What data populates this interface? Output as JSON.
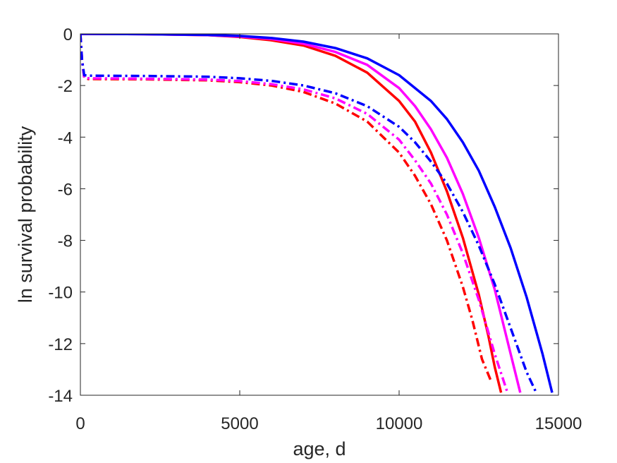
{
  "chart_data": {
    "type": "line",
    "xlabel": "age, d",
    "ylabel": "ln survival probability",
    "xlim": [
      0,
      15000
    ],
    "ylim": [
      -14,
      0
    ],
    "xticks": [
      0,
      5000,
      10000,
      15000
    ],
    "yticks": [
      0,
      -2,
      -4,
      -6,
      -8,
      -10,
      -12,
      -14
    ],
    "grid": false,
    "series": [
      {
        "color": "#ff0000",
        "style": "solid",
        "x": [
          0,
          2000,
          4000,
          5000,
          6000,
          7000,
          8000,
          9000,
          10000,
          10500,
          11000,
          11500,
          12000,
          12500,
          12800,
          13000,
          13200
        ],
        "y": [
          0,
          -0.01,
          -0.05,
          -0.12,
          -0.25,
          -0.45,
          -0.85,
          -1.5,
          -2.6,
          -3.4,
          -4.6,
          -6.1,
          -7.9,
          -10.1,
          -11.7,
          -12.9,
          -13.9
        ]
      },
      {
        "color": "#ff00ff",
        "style": "solid",
        "x": [
          0,
          2000,
          4000,
          5000,
          6000,
          7000,
          8000,
          9000,
          10000,
          10500,
          11000,
          11500,
          12000,
          12500,
          13000,
          13500,
          13800
        ],
        "y": [
          0,
          -0.01,
          -0.05,
          -0.1,
          -0.2,
          -0.38,
          -0.7,
          -1.2,
          -2.1,
          -2.8,
          -3.7,
          -4.8,
          -6.2,
          -7.9,
          -9.9,
          -12.4,
          -13.9
        ]
      },
      {
        "color": "#0000ff",
        "style": "solid",
        "x": [
          0,
          2000,
          4000,
          5000,
          6000,
          7000,
          8000,
          9000,
          10000,
          11000,
          11500,
          12000,
          12500,
          13000,
          13500,
          14000,
          14500,
          14800
        ],
        "y": [
          0,
          -0.01,
          -0.04,
          -0.08,
          -0.16,
          -0.3,
          -0.55,
          -0.95,
          -1.6,
          -2.6,
          -3.3,
          -4.2,
          -5.3,
          -6.7,
          -8.3,
          -10.2,
          -12.4,
          -13.9
        ]
      },
      {
        "color": "#ff0000",
        "style": "dashdot",
        "x": [
          0,
          50,
          120,
          250,
          2000,
          4000,
          5000,
          6000,
          7000,
          8000,
          9000,
          10000,
          10500,
          11000,
          11500,
          12000,
          12300,
          12600,
          12900
        ],
        "y": [
          0,
          -1.0,
          -1.7,
          -1.75,
          -1.76,
          -1.8,
          -1.87,
          -2.0,
          -2.25,
          -2.7,
          -3.4,
          -4.6,
          -5.5,
          -6.6,
          -8.0,
          -9.8,
          -11.1,
          -12.6,
          -13.5
        ]
      },
      {
        "color": "#ff00ff",
        "style": "dashdot",
        "x": [
          0,
          50,
          120,
          250,
          2000,
          4000,
          5000,
          6000,
          7000,
          8000,
          9000,
          10000,
          10500,
          11000,
          11500,
          12000,
          12500,
          13000,
          13400
        ],
        "y": [
          0,
          -1.0,
          -1.7,
          -1.72,
          -1.74,
          -1.77,
          -1.83,
          -1.95,
          -2.15,
          -2.5,
          -3.1,
          -4.1,
          -4.9,
          -5.8,
          -7.0,
          -8.5,
          -10.3,
          -12.4,
          -13.9
        ]
      },
      {
        "color": "#0000ff",
        "style": "dashdot",
        "x": [
          0,
          50,
          120,
          250,
          2000,
          4000,
          5000,
          6000,
          7000,
          8000,
          9000,
          10000,
          10500,
          11000,
          11500,
          12000,
          12500,
          13000,
          13500,
          14000,
          14300
        ],
        "y": [
          0,
          -1.0,
          -1.6,
          -1.62,
          -1.63,
          -1.66,
          -1.72,
          -1.82,
          -2.0,
          -2.3,
          -2.8,
          -3.6,
          -4.2,
          -4.95,
          -5.8,
          -6.9,
          -8.2,
          -9.7,
          -11.4,
          -13.1,
          -13.9
        ]
      }
    ]
  }
}
